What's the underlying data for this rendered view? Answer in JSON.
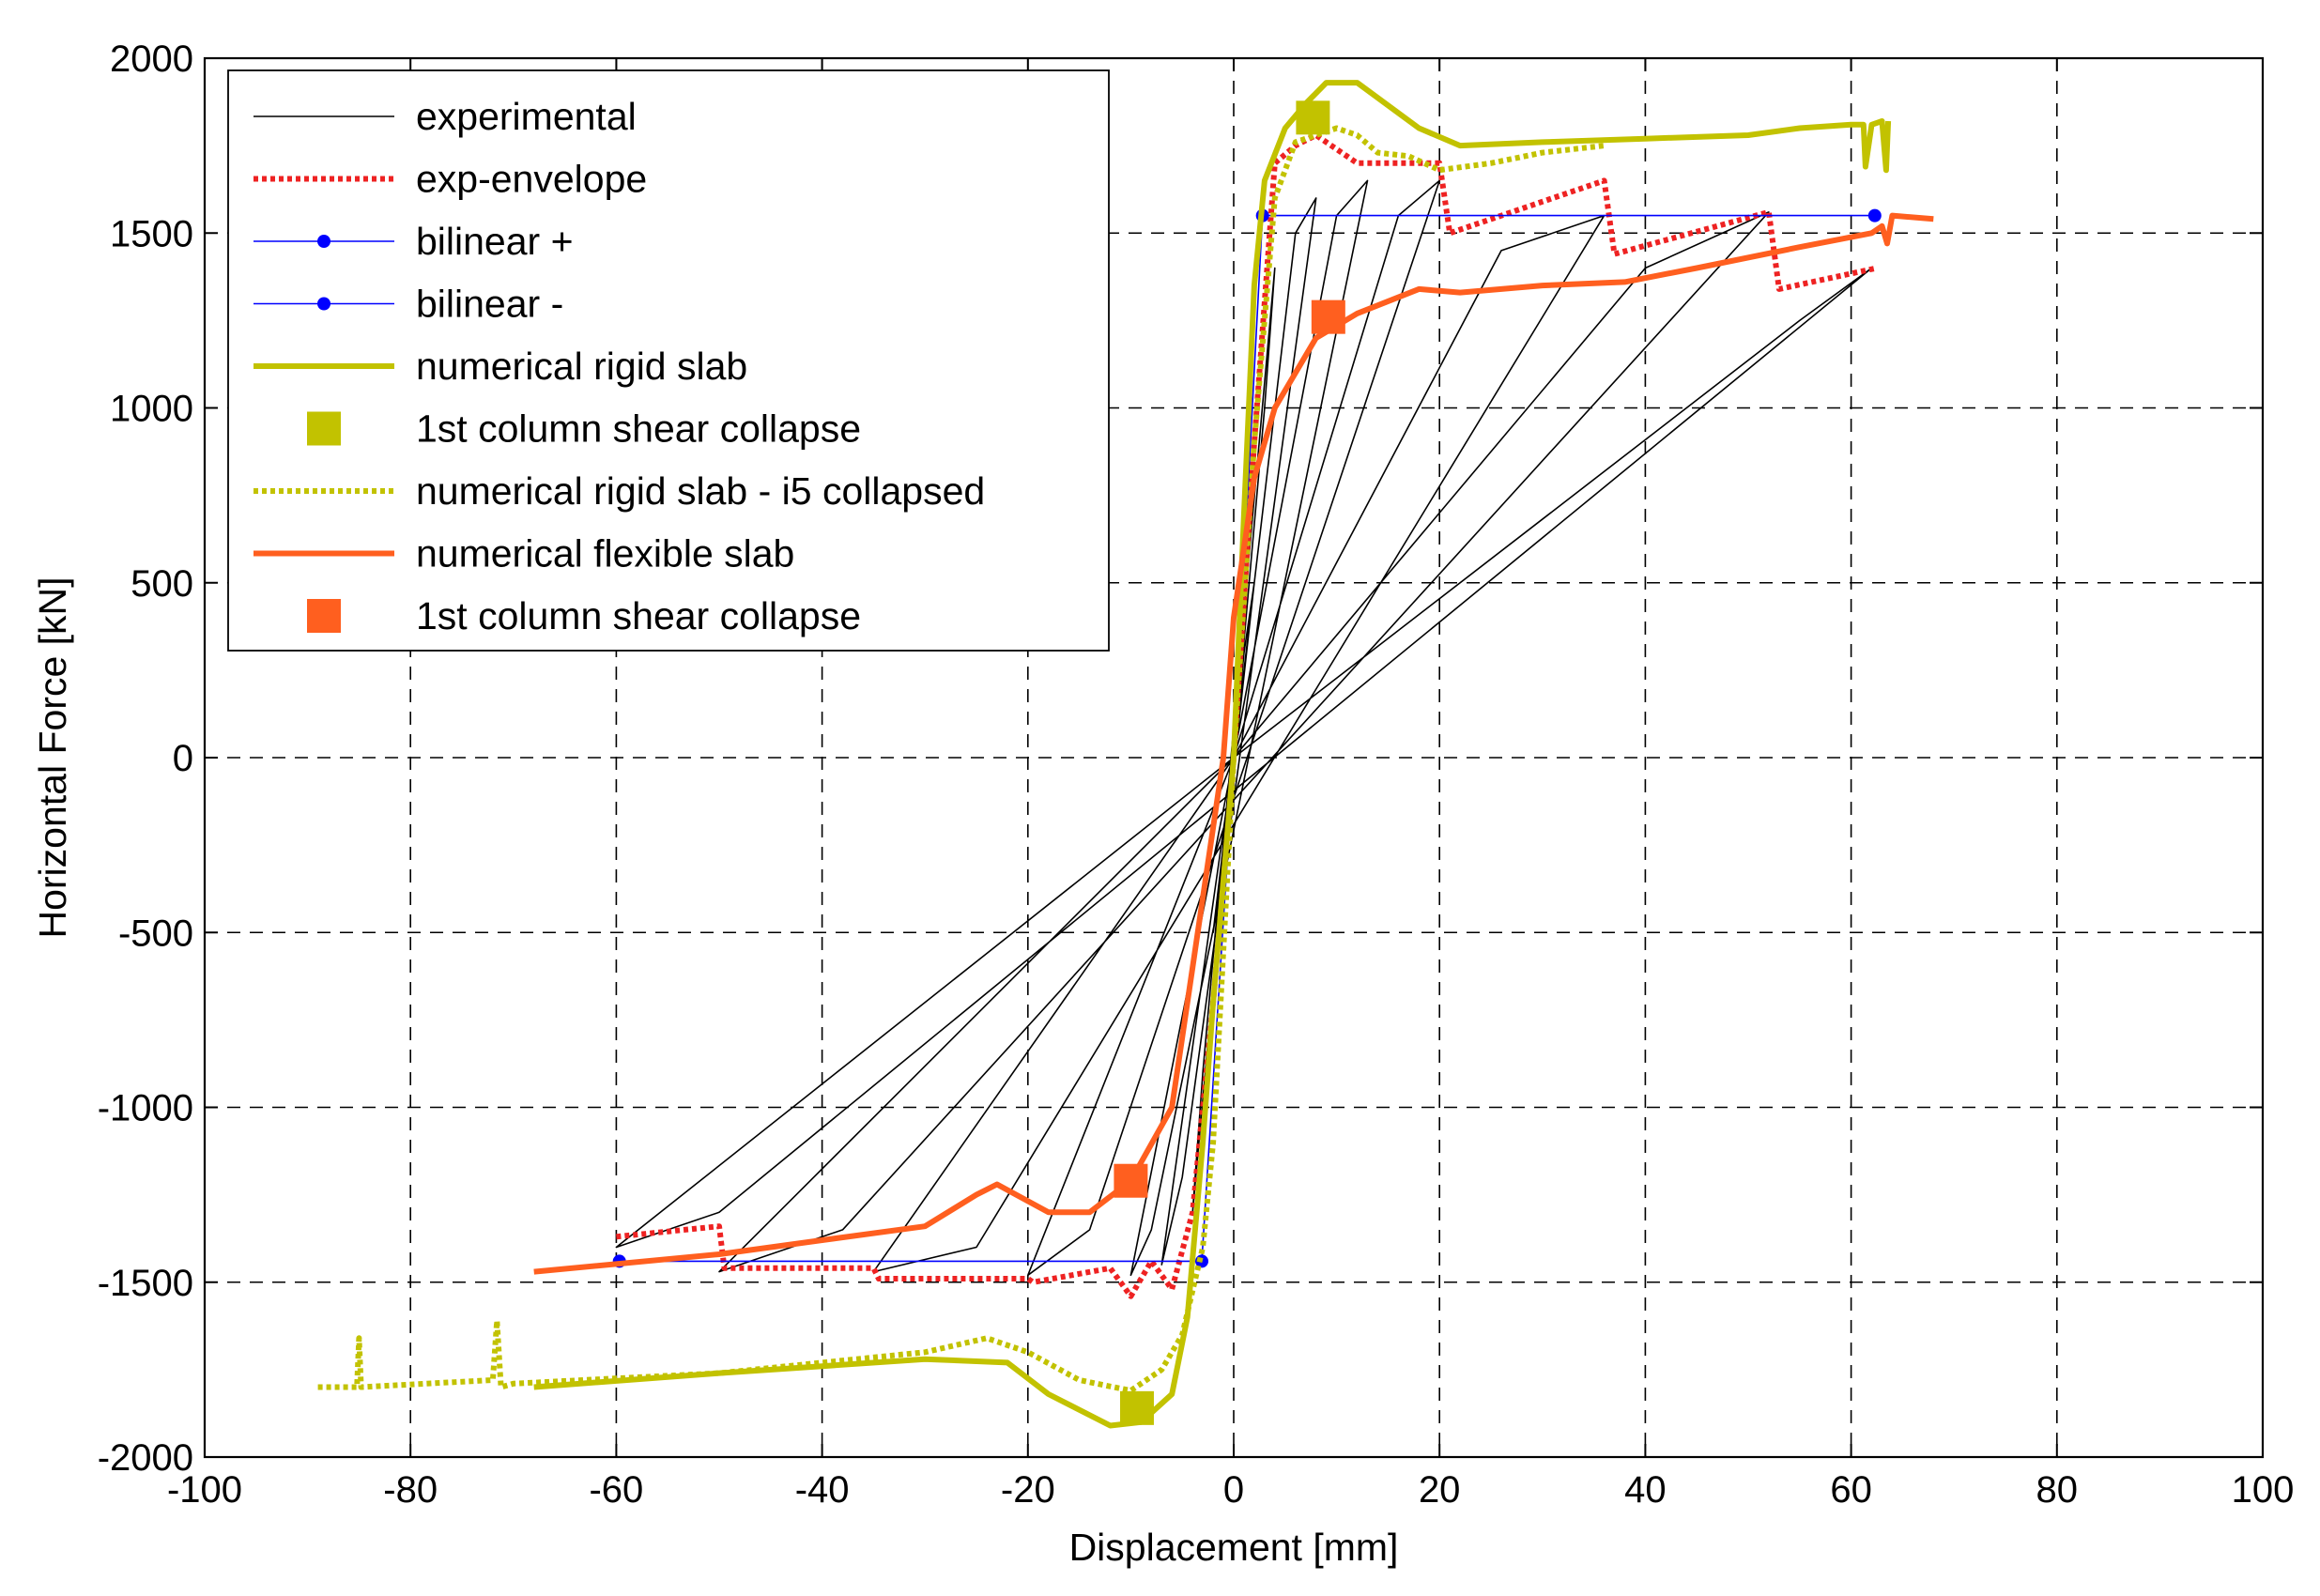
{
  "chart_data": {
    "type": "line",
    "title": "",
    "xlabel": "Displacement [mm]",
    "ylabel": "Horizontal Force [kN]",
    "xlim": [
      -100,
      100
    ],
    "ylim": [
      -2000,
      2000
    ],
    "grid": true,
    "legend_position": "top-left",
    "x_ticks": [
      -100,
      -80,
      -60,
      -40,
      -20,
      0,
      20,
      40,
      60,
      80,
      100
    ],
    "y_ticks": [
      -2000,
      -1500,
      -1000,
      -500,
      0,
      500,
      1000,
      1500,
      2000
    ],
    "x_tick_labels": [
      "-100",
      "-80",
      "-60",
      "-40",
      "-20",
      "0",
      "20",
      "40",
      "60",
      "80",
      "100"
    ],
    "y_tick_labels": [
      "-2000",
      "-1500",
      "-1000",
      "-500",
      "0",
      "500",
      "1000",
      "1500",
      "2000"
    ],
    "series": [
      {
        "name": "experimental",
        "color": "#000000",
        "style": "solid-thin",
        "x": [
          0,
          1,
          2,
          -1,
          -2,
          0,
          3,
          4,
          -3,
          -4,
          0,
          6,
          8,
          -5,
          -7,
          0,
          10,
          13,
          -8,
          -10,
          0,
          16,
          20,
          -14,
          -20,
          0,
          26,
          36,
          -25,
          -35,
          0,
          40,
          52,
          -38,
          -50,
          0,
          55,
          62,
          -50,
          -60,
          0
        ],
        "y": [
          0,
          300,
          500,
          -300,
          -500,
          0,
          1000,
          1400,
          -900,
          -1300,
          0,
          1500,
          1600,
          -1200,
          -1450,
          0,
          1550,
          1650,
          -1350,
          -1480,
          0,
          1550,
          1650,
          -1350,
          -1480,
          0,
          1450,
          1550,
          -1400,
          -1470,
          0,
          1400,
          1560,
          -1350,
          -1470,
          0,
          1250,
          1400,
          -1300,
          -1400,
          0
        ]
      },
      {
        "name": "exp-envelope",
        "color": "#ee2222",
        "style": "dotted",
        "x": [
          -60,
          -50,
          -49.5,
          -35,
          -34.5,
          -20,
          -19.5,
          -12,
          -10,
          -8,
          -6,
          -4,
          -2,
          0,
          2,
          4,
          6,
          8,
          12,
          20,
          21,
          36,
          37,
          52,
          53,
          62.5
        ],
        "y": [
          -1370,
          -1340,
          -1460,
          -1460,
          -1490,
          -1490,
          -1500,
          -1460,
          -1540,
          -1440,
          -1520,
          -1300,
          -700,
          0,
          900,
          1700,
          1750,
          1780,
          1700,
          1700,
          1500,
          1650,
          1440,
          1560,
          1340,
          1400
        ]
      },
      {
        "name": "bilinear +",
        "color": "#0000ff",
        "style": "solid-markers",
        "x": [
          0,
          2.8,
          62.3
        ],
        "y": [
          0,
          1550,
          1550
        ]
      },
      {
        "name": "bilinear -",
        "color": "#0000ff",
        "style": "solid-markers",
        "x": [
          0,
          -3.1,
          -59.7
        ],
        "y": [
          0,
          -1440,
          -1440
        ]
      },
      {
        "name": "numerical rigid slab",
        "color": "#c2c200",
        "style": "solid-thick",
        "x": [
          -68,
          -50,
          -40,
          -30,
          -22,
          -18,
          -12,
          -9,
          -6,
          -4.5,
          -3,
          -2,
          0,
          1,
          2,
          3,
          5,
          7,
          9,
          12,
          18,
          22,
          30,
          40,
          50,
          55,
          60,
          61.2,
          61.4,
          62,
          63,
          63.4,
          63.6
        ],
        "y": [
          -1800,
          -1760,
          -1740,
          -1720,
          -1730,
          -1820,
          -1910,
          -1900,
          -1820,
          -1600,
          -1100,
          -700,
          0,
          700,
          1350,
          1650,
          1800,
          1870,
          1930,
          1930,
          1800,
          1750,
          1760,
          1770,
          1780,
          1800,
          1810,
          1810,
          1690,
          1810,
          1820,
          1680,
          1820
        ]
      },
      {
        "name": "1st column shear collapse",
        "color": "#c2c200",
        "style": "square-markers",
        "x": [
          7.7,
          -9.4
        ],
        "y": [
          1830,
          -1860
        ]
      },
      {
        "name": "numerical rigid slab - i5 collapsed",
        "color": "#c2c200",
        "style": "dotted",
        "x": [
          -89,
          -85.2,
          -85,
          -84.8,
          -72,
          -71.6,
          -71.2,
          -70,
          -50,
          -40,
          -30,
          -24,
          -20,
          -15,
          -10,
          -7,
          -5,
          -3,
          -2,
          0,
          2,
          4,
          6,
          8,
          10,
          12,
          14,
          17,
          20,
          25,
          30,
          36
        ],
        "y": [
          -1800,
          -1800,
          -1660,
          -1800,
          -1780,
          -1610,
          -1800,
          -1790,
          -1760,
          -1730,
          -1700,
          -1660,
          -1700,
          -1780,
          -1810,
          -1750,
          -1650,
          -1400,
          -1100,
          0,
          900,
          1600,
          1760,
          1780,
          1800,
          1780,
          1730,
          1720,
          1680,
          1700,
          1730,
          1750
        ]
      },
      {
        "name": "numerical flexible slab",
        "color": "#ff5f1f",
        "style": "solid-thick",
        "x": [
          -68,
          -50,
          -40,
          -30,
          -25,
          -23,
          -18,
          -14,
          -10,
          -6,
          -4,
          -2,
          -1,
          0,
          1,
          2,
          4,
          8,
          12,
          18,
          22,
          30,
          38,
          45,
          55,
          62,
          63,
          63.5,
          64,
          68
        ],
        "y": [
          -1470,
          -1420,
          -1380,
          -1340,
          -1250,
          -1220,
          -1300,
          -1300,
          -1210,
          -1000,
          -600,
          -200,
          0,
          400,
          600,
          800,
          1000,
          1200,
          1270,
          1340,
          1330,
          1350,
          1360,
          1400,
          1460,
          1500,
          1520,
          1470,
          1550,
          1540
        ]
      },
      {
        "name": "1st column shear collapse",
        "color": "#ff5f1f",
        "style": "square-markers",
        "x": [
          9.2,
          -10
        ],
        "y": [
          1260,
          -1210
        ]
      }
    ]
  }
}
